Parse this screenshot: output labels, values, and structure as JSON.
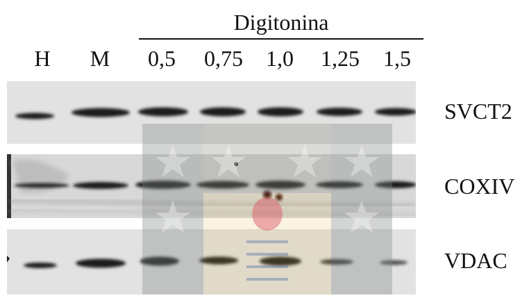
{
  "group_label": "Digitonina",
  "lanes": [
    "H",
    "M",
    "0,5",
    "0,75",
    "1,0",
    "1,25",
    "1,5"
  ],
  "rows": [
    {
      "label": "SVCT2"
    },
    {
      "label": "COXIV"
    },
    {
      "label": "VDAC"
    }
  ],
  "colors": {
    "text": "#111111",
    "band": "#1a1a1a",
    "watermark_blue": "#4a6fa5",
    "watermark_gold": "#e0b24a",
    "watermark_red": "#d9535f"
  }
}
